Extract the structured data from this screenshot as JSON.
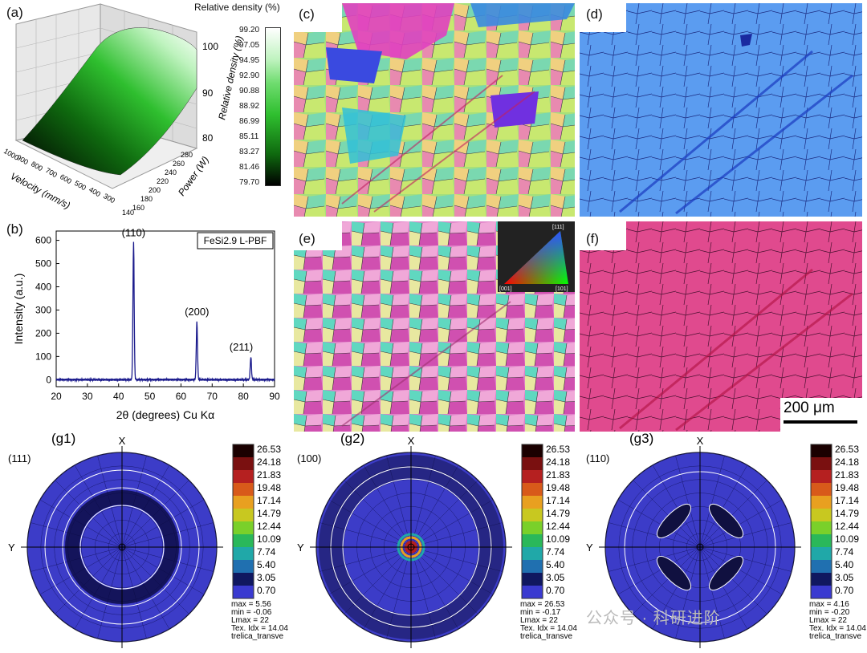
{
  "panel_a": {
    "label": "(a)",
    "colorbar_title": "Relative density (%)",
    "colorbar_ticks": [
      "99.20",
      "97.05",
      "94.95",
      "92.90",
      "90.88",
      "88.92",
      "86.99",
      "85.11",
      "83.27",
      "81.46",
      "79.70"
    ],
    "z_axis_label": "Relative density (%)",
    "z_ticks": [
      "100",
      "90",
      "80"
    ],
    "velocity_label": "Velocity (mm/s)",
    "velocity_ticks": [
      "1000",
      "900",
      "800",
      "700",
      "600",
      "500",
      "400",
      "300"
    ],
    "power_label": "Power (W)",
    "power_ticks": [
      "280",
      "260",
      "240",
      "220",
      "200",
      "180",
      "160",
      "140"
    ],
    "colors": {
      "low": "#000000",
      "mid": "#1fa31f",
      "high": "#ffffff"
    }
  },
  "panel_b": {
    "label": "(b)",
    "legend": "FeSi2.9 L-PBF",
    "chart_data": {
      "type": "line",
      "title": "",
      "xlabel": "2θ (degrees) Cu Kα",
      "ylabel": "Intensity (a.u.)",
      "xlim": [
        20,
        90
      ],
      "ylim": [
        -30,
        640
      ],
      "x_ticks": [
        20,
        30,
        40,
        50,
        60,
        70,
        80,
        90
      ],
      "y_ticks": [
        0,
        100,
        200,
        300,
        400,
        500,
        600
      ],
      "peaks": [
        {
          "x": 44.8,
          "y": 590,
          "label": "(110)"
        },
        {
          "x": 65.1,
          "y": 250,
          "label": "(200)"
        },
        {
          "x": 82.4,
          "y": 98,
          "label": "(211)"
        }
      ],
      "baseline": 0,
      "color": "#1a1a8c"
    }
  },
  "panel_c": {
    "label": "(c)"
  },
  "panel_d": {
    "label": "(d)"
  },
  "panel_e": {
    "label": "(e)",
    "legend_corners": [
      "[111]",
      "[001]",
      "[101]"
    ]
  },
  "panel_f": {
    "label": "(f)",
    "scale_bar": "200 μm"
  },
  "pole_figures": [
    {
      "label": "(g1)",
      "plane": "(111)",
      "x_axis": "X",
      "y_axis": "Y",
      "stats": [
        "max = 5.56",
        "min = -0.06",
        "Lmax = 22",
        "Tex. Idx = 14.04",
        "trelica_transve"
      ]
    },
    {
      "label": "(g2)",
      "plane": "(100)",
      "x_axis": "X",
      "y_axis": "Y",
      "stats": [
        "max = 26.53",
        "min = -0.17",
        "Lmax = 22",
        "Tex. Idx = 14.04",
        "trelica_transve"
      ]
    },
    {
      "label": "(g3)",
      "plane": "(110)",
      "x_axis": "X",
      "y_axis": "Y",
      "stats": [
        "max = 4.16",
        "min = -0.20",
        "Lmax = 22",
        "Tex. Idx = 14.04",
        "trelica_transve"
      ]
    }
  ],
  "pole_colorbar_ticks": [
    "26.53",
    "24.18",
    "21.83",
    "19.48",
    "17.14",
    "14.79",
    "12.44",
    "10.09",
    "7.74",
    "5.40",
    "3.05",
    "0.70"
  ],
  "pole_colorbar_colors": [
    "#1a0000",
    "#7a1010",
    "#b52020",
    "#d85a1a",
    "#e8a020",
    "#c8c820",
    "#7ad02a",
    "#2ab85a",
    "#20a8a8",
    "#2070b0",
    "#101860",
    "#3a3ad0"
  ],
  "watermark": "公众号 · 科研进阶"
}
